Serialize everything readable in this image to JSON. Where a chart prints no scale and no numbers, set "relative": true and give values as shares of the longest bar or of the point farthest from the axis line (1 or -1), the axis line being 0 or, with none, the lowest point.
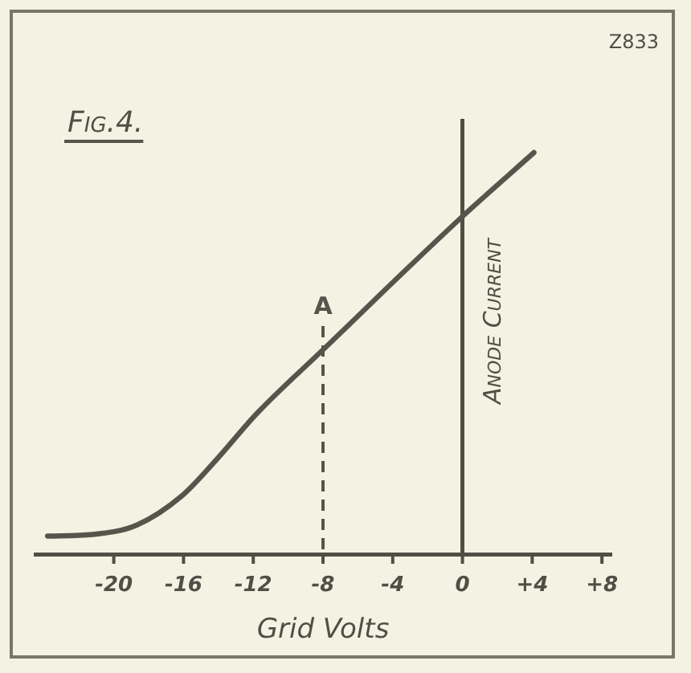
{
  "chart_data": {
    "type": "line",
    "title": "Fig.4.",
    "xlabel": "Grid Volts",
    "ylabel": "Anode Current",
    "relative": true,
    "x": [
      -23.8,
      -21.2,
      -18.7,
      -16.1,
      -14.2,
      -11.8,
      -8.0,
      0.0,
      4.1
    ],
    "series": [
      {
        "color": "#55554b",
        "values": [
          0.045,
          0.049,
          0.072,
          0.145,
          0.231,
          0.35,
          0.509,
          0.841,
          1.0
        ]
      }
    ],
    "xlim": [
      -24.5,
      8.5
    ],
    "xticks": [
      -20,
      -16,
      -12,
      -8,
      -4,
      0,
      {
        "value": 4,
        "label": "+4"
      },
      {
        "value": 8,
        "label": "+8"
      }
    ],
    "ref_lines": [
      {
        "axis": "x",
        "value": -8,
        "label": "A",
        "line_style": "dashed",
        "color": "#55554b"
      }
    ],
    "annotations": [
      "Z833"
    ],
    "legend": false,
    "marker": "none",
    "line_style": "solid"
  }
}
